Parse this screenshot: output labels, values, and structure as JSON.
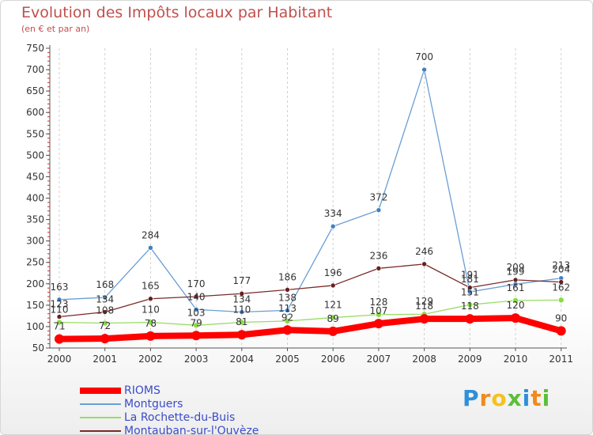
{
  "chart_data": {
    "type": "line",
    "title": "Evolution des Impôts locaux par Habitant",
    "subtitle": "(en € et par an)",
    "xlabel": "",
    "ylabel": "",
    "categories": [
      "2000",
      "2001",
      "2002",
      "2003",
      "2004",
      "2005",
      "2006",
      "2007",
      "2008",
      "2009",
      "2010",
      "2011"
    ],
    "ylim": [
      50,
      750
    ],
    "yticks": [
      50,
      100,
      150,
      200,
      250,
      300,
      350,
      400,
      450,
      500,
      550,
      600,
      650,
      700,
      750
    ],
    "grid": "vertical dashed",
    "legend_position": "bottom-left",
    "series": [
      {
        "name": "RIOMS",
        "color": "#ff0000",
        "values": [
          71,
          72,
          78,
          79,
          81,
          92,
          89,
          107,
          118,
          118,
          120,
          90
        ],
        "labels": [
          "71",
          "72",
          "78",
          "79",
          "81",
          "92",
          "89",
          "107",
          "118",
          "118",
          "120",
          "90"
        ]
      },
      {
        "name": "Montguers",
        "color": "#6a9fd4",
        "values": [
          163,
          168,
          284,
          140,
          134,
          138,
          334,
          372,
          700,
          181,
          199,
          213
        ],
        "labels": [
          "163",
          "168",
          "284",
          "140",
          "134",
          "138",
          "334",
          "372",
          "700",
          "181",
          "199",
          "213"
        ]
      },
      {
        "name": "La Rochette-du-Buis",
        "color": "#99dd66",
        "values": [
          110,
          108,
          110,
          103,
          110,
          113,
          121,
          128,
          129,
          151,
          161,
          162
        ],
        "labels": [
          "110",
          "108",
          "110",
          "103",
          "110",
          "113",
          "121",
          "128",
          "129",
          "151",
          "161",
          "162"
        ]
      },
      {
        "name": "Montauban-sur-l'Ouvèze",
        "color": "#7a2a2a",
        "values": [
          123,
          134,
          165,
          170,
          177,
          186,
          196,
          236,
          246,
          191,
          209,
          204
        ],
        "labels": [
          "123",
          "134",
          "165",
          "170",
          "177",
          "186",
          "196",
          "236",
          "246",
          "191",
          "209",
          "204"
        ]
      }
    ]
  },
  "brand": {
    "letters": [
      "P",
      "r",
      "o",
      "x",
      "i",
      "t",
      "i"
    ],
    "colors": [
      "#2f8fd8",
      "#f08a1c",
      "#f5c21b",
      "#5bbf3a",
      "#2f8fd8",
      "#f08a1c",
      "#5bbf3a"
    ]
  }
}
